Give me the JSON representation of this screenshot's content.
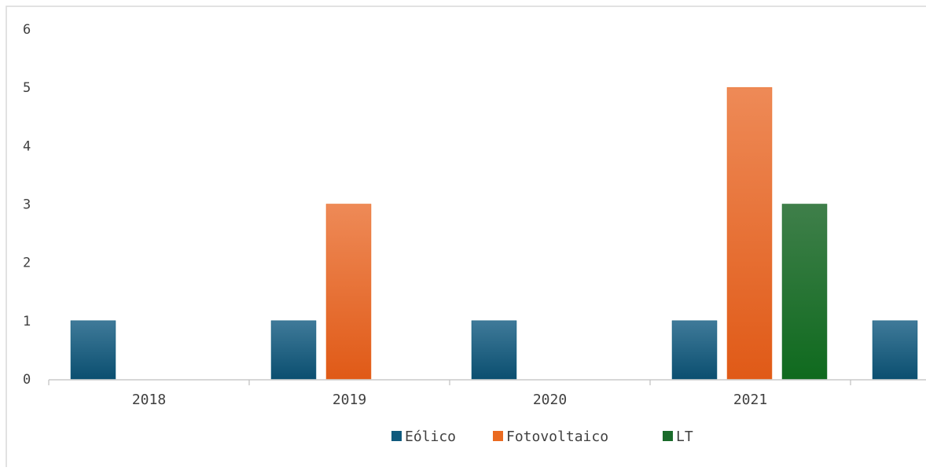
{
  "chart_data": {
    "type": "bar",
    "categories": [
      "2018",
      "2019",
      "2020",
      "2021",
      ""
    ],
    "series": [
      {
        "name": "Eólico",
        "values": [
          1,
          1,
          1,
          1,
          1
        ],
        "color": "#0f5a7d"
      },
      {
        "name": "Fotovoltaico",
        "values": [
          0,
          3,
          0,
          5,
          0
        ],
        "color": "#ea6a20"
      },
      {
        "name": "LT",
        "values": [
          0,
          0,
          0,
          3,
          0
        ],
        "color": "#1a6b2a"
      }
    ],
    "ylim": [
      0,
      6
    ],
    "yticks": [
      "0",
      "1",
      "2",
      "3",
      "4",
      "5",
      "6"
    ],
    "xlabel": "",
    "ylabel": "",
    "grid": false,
    "legend_position": "bottom"
  }
}
